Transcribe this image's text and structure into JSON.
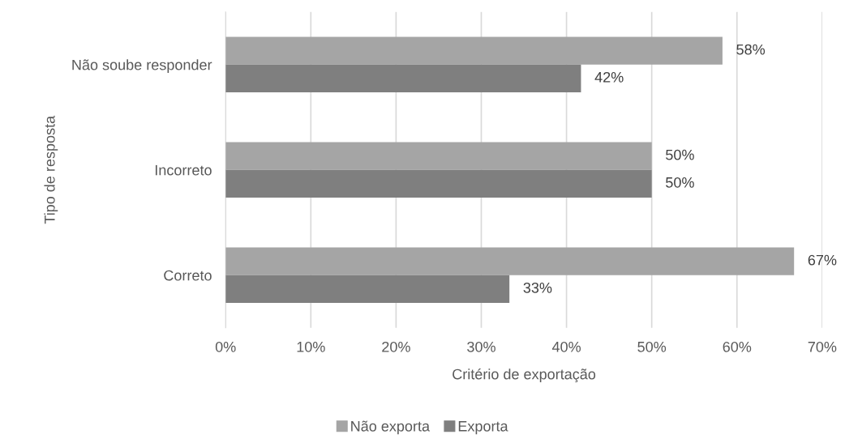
{
  "chart_data": {
    "type": "bar",
    "orientation": "horizontal",
    "xlabel": "Critério de exportação",
    "ylabel": "Tipo de resposta",
    "categories": [
      "Não soube responder",
      "Incorreto",
      "Correto"
    ],
    "series": [
      {
        "name": "Não exporta",
        "color": "#a5a5a5",
        "values": [
          58.3,
          50,
          66.7
        ],
        "value_labels": [
          "58%",
          "50%",
          "67%"
        ]
      },
      {
        "name": "Exporta",
        "color": "#7f7f7f",
        "values": [
          41.7,
          50,
          33.3
        ],
        "value_labels": [
          "42%",
          "50%",
          "33%"
        ]
      }
    ],
    "xlim": [
      0,
      70
    ],
    "xticks": [
      {
        "value": 0,
        "label": "0%"
      },
      {
        "value": 10,
        "label": "10%"
      },
      {
        "value": 20,
        "label": "20%"
      },
      {
        "value": 30,
        "label": "30%"
      },
      {
        "value": 40,
        "label": "40%"
      },
      {
        "value": 50,
        "label": "50%"
      },
      {
        "value": 60,
        "label": "60%"
      },
      {
        "value": 70,
        "label": "70%"
      }
    ],
    "grid": "x",
    "legend": "bottom"
  }
}
